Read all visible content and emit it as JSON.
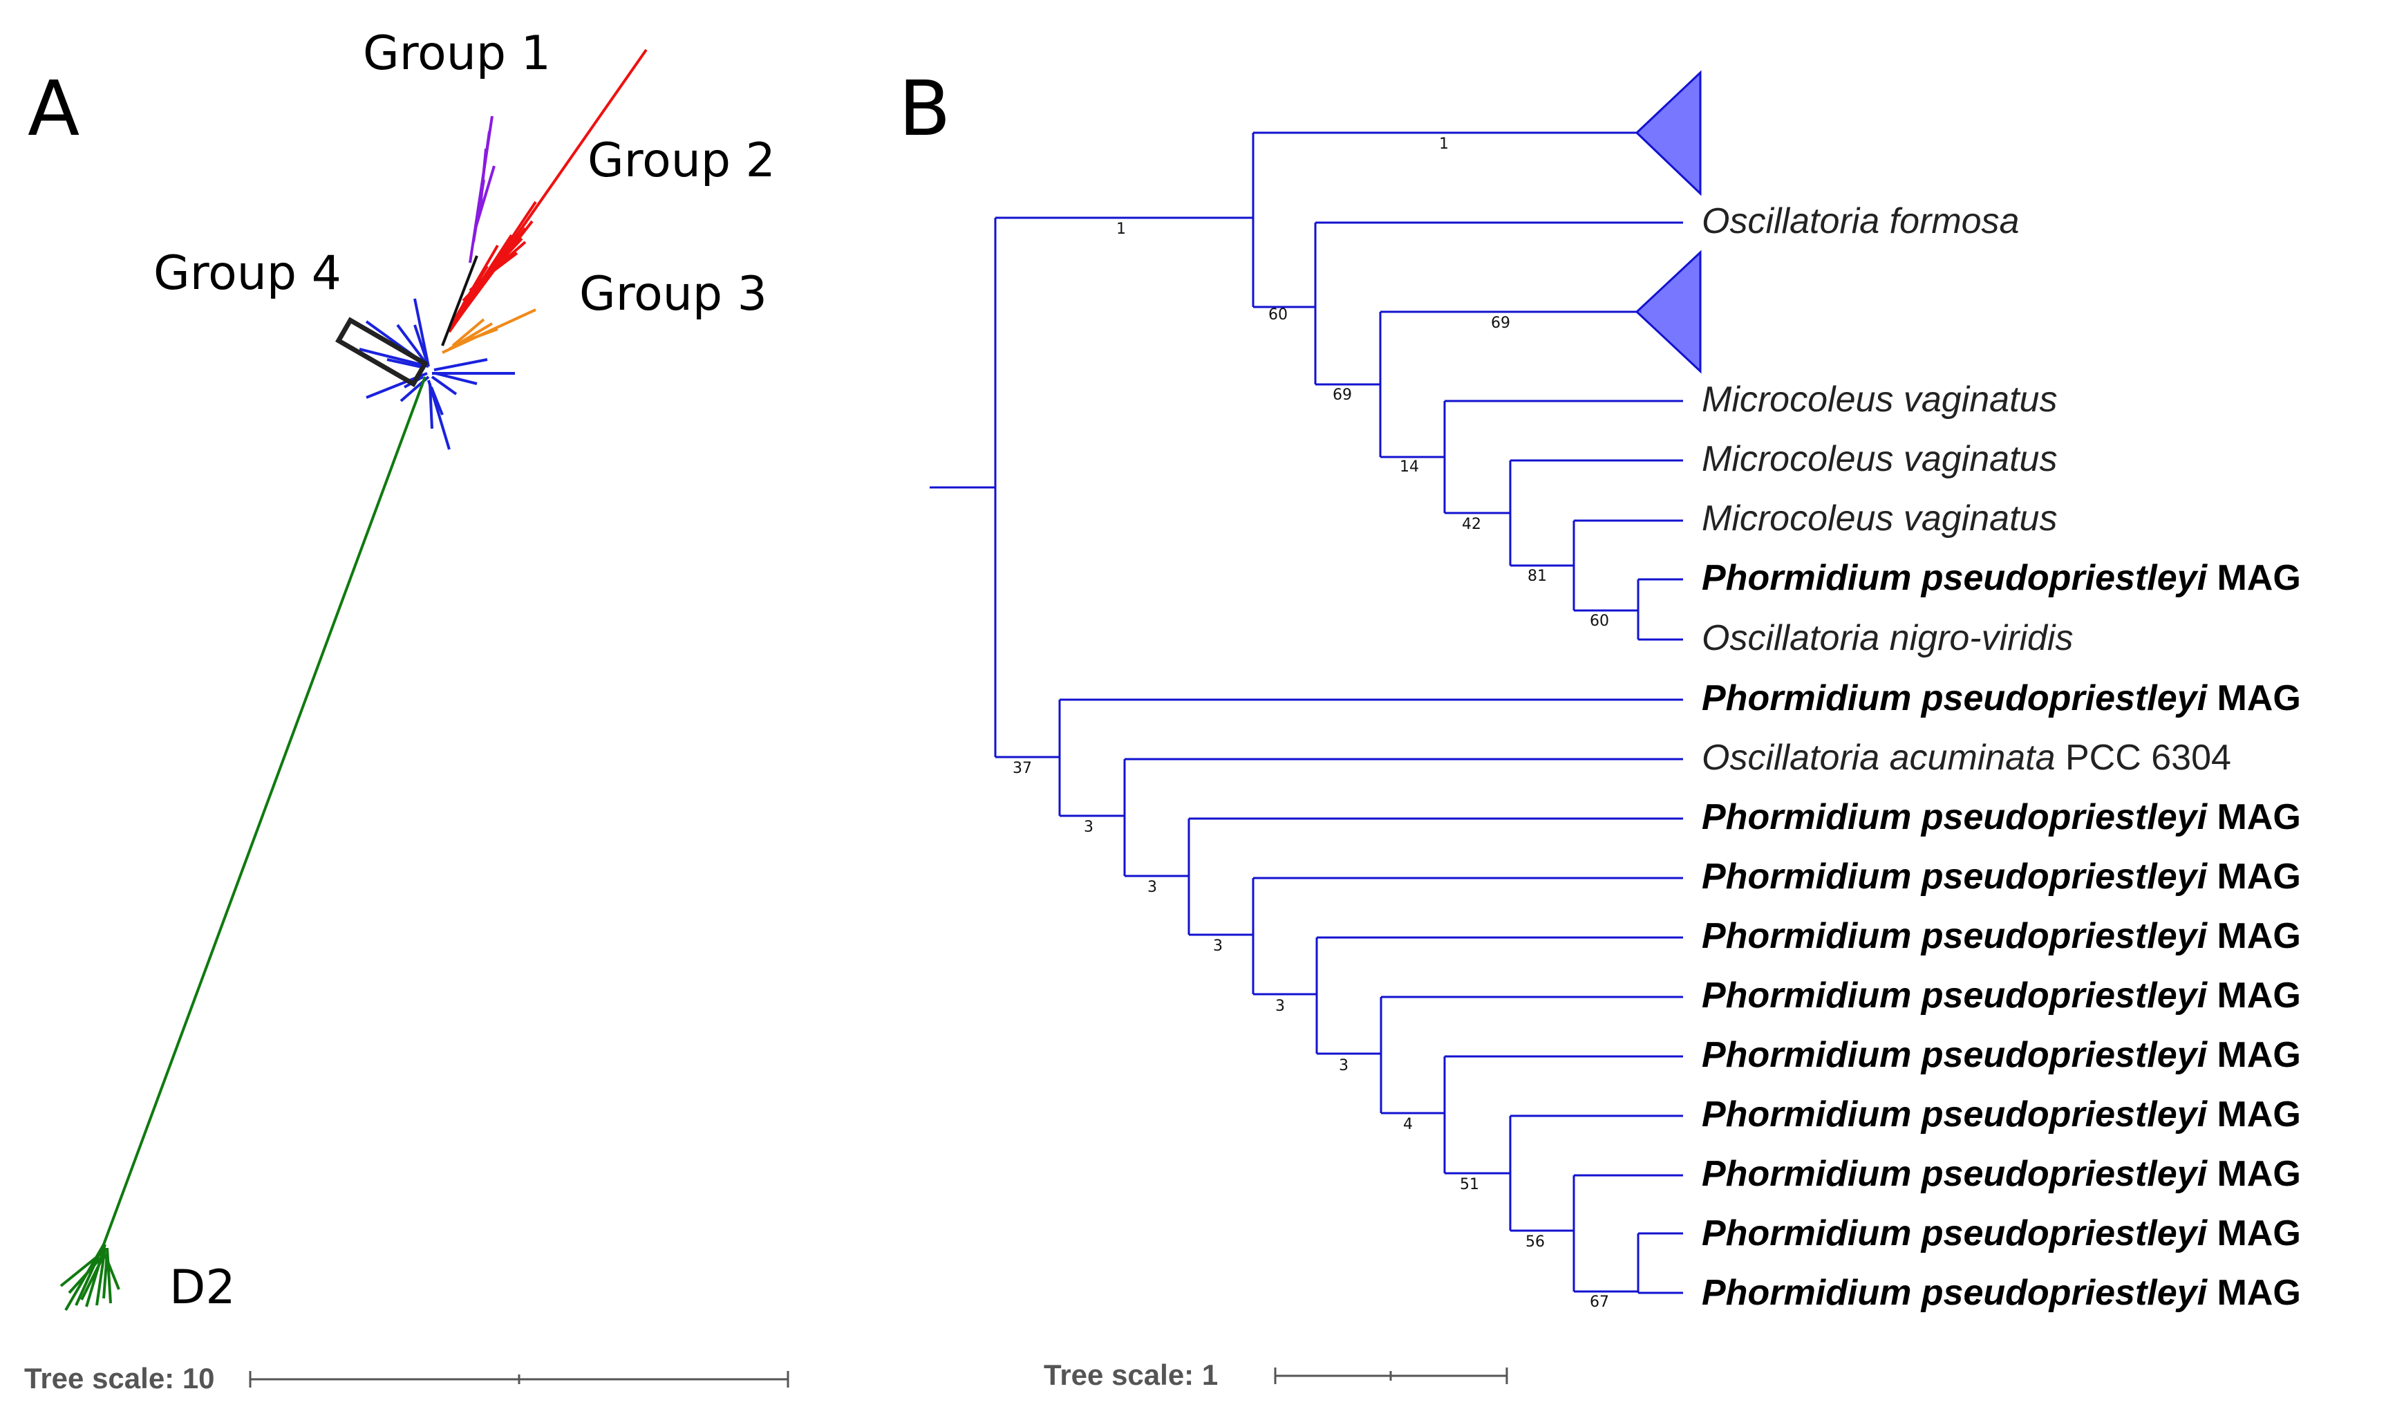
{
  "panel_a": {
    "letter": "A",
    "groups": {
      "group1": "Group 1",
      "group2": "Group 2",
      "group3": "Group 3",
      "group4": "Group 4",
      "d2": "D2"
    },
    "colors": {
      "group1": "#8a1be0",
      "group2": "#ee1111",
      "group3": "#f08a1a",
      "group4": "#1a22dd",
      "d2": "#107a10"
    },
    "scale_label": "Tree scale: 10"
  },
  "panel_b": {
    "letter": "B",
    "scale_label": "Tree scale: 1",
    "collapsed_color": "#7777ff",
    "leaves": [
      {
        "name": "Oscillatoria formosa",
        "suffix": ""
      },
      {
        "name": "Microcoleus vaginatus",
        "suffix": ""
      },
      {
        "name": "Microcoleus vaginatus",
        "suffix": ""
      },
      {
        "name": "Microcoleus vaginatus",
        "suffix": ""
      },
      {
        "name": "Phormidium pseudopriestleyi",
        "suffix": " MAG"
      },
      {
        "name": "Oscillatoria nigro-viridis",
        "suffix": ""
      },
      {
        "name": "Phormidium pseudopriestleyi",
        "suffix": " MAG"
      },
      {
        "name": "Oscillatoria acuminata",
        "suffix": " PCC 6304"
      },
      {
        "name": "Phormidium pseudopriestleyi",
        "suffix": " MAG"
      },
      {
        "name": "Phormidium pseudopriestleyi",
        "suffix": " MAG"
      },
      {
        "name": "Phormidium pseudopriestleyi",
        "suffix": " MAG"
      },
      {
        "name": "Phormidium pseudopriestleyi",
        "suffix": " MAG"
      },
      {
        "name": "Phormidium pseudopriestleyi",
        "suffix": " MAG"
      },
      {
        "name": "Phormidium pseudopriestleyi",
        "suffix": " MAG"
      },
      {
        "name": "Phormidium pseudopriestleyi",
        "suffix": " MAG"
      },
      {
        "name": "Phormidium pseudopriestleyi",
        "suffix": " MAG"
      },
      {
        "name": "Phormidium pseudopriestleyi",
        "suffix": " MAG"
      }
    ],
    "support_values": {
      "collapsed_top": "1",
      "root_upper": "1",
      "n60a": "60",
      "collapsed_mid": "69",
      "n69": "69",
      "n14": "14",
      "n42": "42",
      "n81": "81",
      "n60b": "60",
      "n37": "37",
      "n3a": "3",
      "n3b": "3",
      "n3c": "3",
      "n3d": "3",
      "n3e": "3",
      "n4": "4",
      "n51": "51",
      "n56": "56",
      "n67": "67"
    }
  }
}
